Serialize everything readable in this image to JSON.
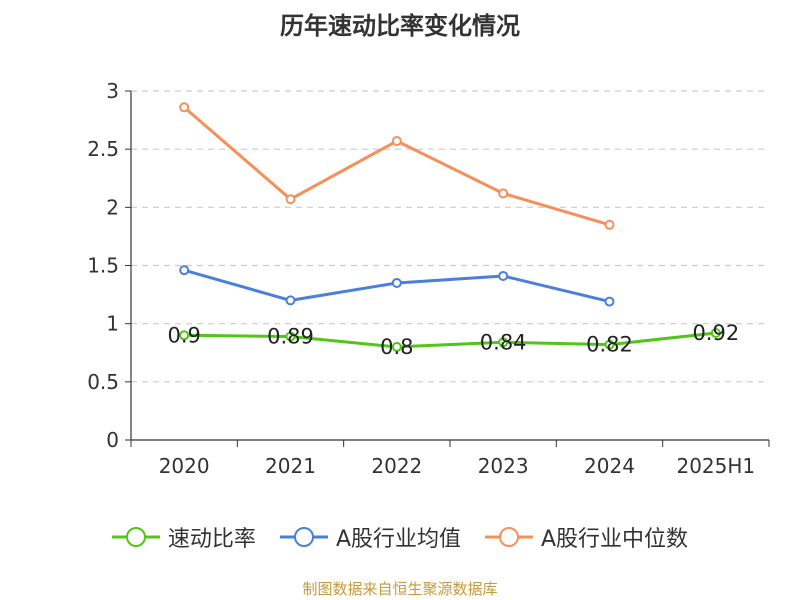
{
  "title": "历年速动比率变化情况",
  "source_note": "制图数据来自恒生聚源数据库",
  "chart_data": {
    "type": "line",
    "title": "历年速动比率变化情况",
    "xlabel": "",
    "ylabel": "",
    "categories": [
      "2020",
      "2021",
      "2022",
      "2023",
      "2024",
      "2025H1"
    ],
    "ylim": [
      0,
      3
    ],
    "yticks": [
      "0",
      "0.5",
      "1",
      "1.5",
      "2",
      "2.5",
      "3"
    ],
    "grid": true,
    "legend_position": "bottom",
    "series": [
      {
        "name": "速动比率",
        "color": "#52c41a",
        "values": [
          0.9,
          0.89,
          0.8,
          0.84,
          0.82,
          0.92
        ],
        "data_labels": [
          "0.9",
          "0.89",
          "0.8",
          "0.84",
          "0.82",
          "0.92"
        ]
      },
      {
        "name": "A股行业均值",
        "color": "#4a7fdc",
        "values": [
          1.46,
          1.2,
          1.35,
          1.41,
          1.19,
          null
        ]
      },
      {
        "name": "A股行业中位数",
        "color": "#f5905a",
        "values": [
          2.86,
          2.07,
          2.57,
          2.12,
          1.85,
          null
        ]
      }
    ]
  }
}
